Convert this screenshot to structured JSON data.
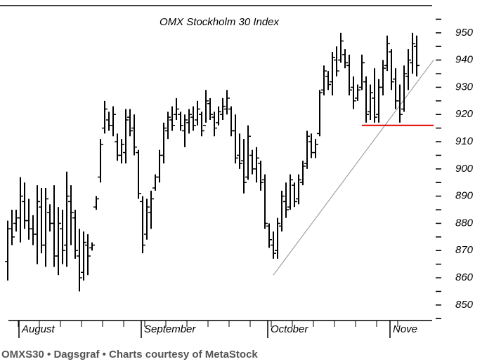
{
  "chart_data": {
    "type": "ohlc",
    "title": "OMX Stockholm 30 Index",
    "categories": [
      null,
      null,
      null,
      "August",
      null,
      null,
      null,
      null,
      null,
      null,
      null,
      null,
      null,
      null,
      null,
      null,
      null,
      null,
      null,
      null,
      null,
      null,
      null,
      null,
      null,
      null,
      null,
      null,
      null,
      null,
      null,
      null,
      "September",
      null,
      null,
      null,
      null,
      null,
      null,
      null,
      null,
      null,
      null,
      null,
      null,
      null,
      null,
      null,
      null,
      null,
      null,
      null,
      null,
      null,
      null,
      null,
      null,
      null,
      null,
      null,
      null,
      null,
      "October",
      null,
      null,
      null,
      null,
      null,
      null,
      null,
      null,
      null,
      null,
      null,
      null,
      null,
      null,
      null,
      null,
      null,
      null,
      null,
      null,
      null,
      null,
      null,
      null,
      null,
      null,
      null,
      null,
      "Nove",
      null,
      null,
      null,
      null,
      null,
      null
    ],
    "open": [
      866,
      878,
      880,
      882,
      888,
      881,
      878,
      876,
      886,
      872,
      884,
      880,
      868,
      878,
      872,
      888,
      882,
      868,
      862,
      872,
      871,
      886,
      897,
      915,
      918,
      916,
      910,
      905,
      906,
      919,
      915,
      906,
      888,
      876,
      884,
      893,
      897,
      905,
      914,
      918,
      920,
      920,
      914,
      917,
      919,
      918,
      920,
      916,
      924,
      919,
      917,
      920,
      922,
      922,
      914,
      905,
      903,
      897,
      905,
      900,
      902,
      896,
      879,
      872,
      870,
      879,
      888,
      886,
      894,
      889,
      895,
      902,
      910,
      906,
      913,
      929,
      934,
      932,
      940,
      940,
      942,
      938,
      930,
      926,
      930,
      932,
      921,
      926,
      920,
      930,
      938,
      943,
      933,
      925,
      922,
      934,
      939,
      945
    ],
    "high": [
      881,
      885,
      885,
      897,
      895,
      889,
      883,
      894,
      893,
      893,
      887,
      894,
      886,
      885,
      899,
      894,
      885,
      878,
      877,
      876,
      873,
      890,
      911,
      925,
      921,
      923,
      913,
      911,
      922,
      922,
      920,
      907,
      890,
      889,
      892,
      898,
      907,
      917,
      921,
      923,
      926,
      921,
      920,
      922,
      923,
      925,
      921,
      929,
      926,
      921,
      923,
      926,
      929,
      923,
      920,
      913,
      911,
      916,
      907,
      908,
      903,
      898,
      880,
      877,
      882,
      892,
      895,
      898,
      895,
      898,
      903,
      914,
      913,
      911,
      929,
      938,
      936,
      943,
      945,
      950,
      944,
      942,
      934,
      931,
      942,
      934,
      931,
      937,
      933,
      940,
      949,
      944,
      937,
      931,
      938,
      944,
      950,
      949
    ],
    "low": [
      859,
      872,
      877,
      873,
      878,
      874,
      872,
      865,
      869,
      864,
      877,
      864,
      861,
      865,
      864,
      872,
      867,
      855,
      859,
      861,
      870,
      885,
      895,
      913,
      914,
      912,
      903,
      902,
      902,
      912,
      905,
      889,
      869,
      874,
      878,
      892,
      895,
      902,
      911,
      914,
      918,
      914,
      908,
      913,
      914,
      916,
      912,
      917,
      918,
      912,
      916,
      918,
      920,
      912,
      902,
      900,
      891,
      896,
      898,
      895,
      892,
      878,
      871,
      867,
      867,
      877,
      882,
      885,
      886,
      887,
      894,
      900,
      904,
      904,
      912,
      927,
      929,
      927,
      934,
      939,
      937,
      927,
      922,
      925,
      929,
      917,
      918,
      917,
      917,
      927,
      936,
      929,
      922,
      917,
      921,
      929,
      935,
      934
    ],
    "close": [
      878,
      875,
      882,
      890,
      881,
      878,
      876,
      888,
      872,
      889,
      880,
      868,
      880,
      870,
      890,
      884,
      870,
      860,
      873,
      868,
      872,
      889,
      909,
      922,
      916,
      920,
      905,
      909,
      918,
      914,
      908,
      891,
      872,
      886,
      889,
      897,
      905,
      915,
      919,
      916,
      922,
      916,
      918,
      920,
      916,
      922,
      914,
      925,
      920,
      915,
      921,
      923,
      926,
      914,
      904,
      902,
      895,
      912,
      900,
      904,
      895,
      880,
      874,
      869,
      880,
      890,
      885,
      896,
      888,
      896,
      901,
      912,
      906,
      909,
      928,
      936,
      931,
      941,
      936,
      947,
      939,
      929,
      925,
      929,
      939,
      920,
      928,
      919,
      930,
      937,
      946,
      932,
      925,
      920,
      935,
      940,
      946,
      938
    ],
    "color": "#000000",
    "ylim": [
      844.3,
      960
    ],
    "yticks": [
      850,
      860,
      870,
      880,
      890,
      900,
      910,
      920,
      930,
      940,
      950
    ],
    "annotations": [
      {
        "from": [
          63,
          861
        ],
        "to": [
          101,
          940
        ],
        "color": "#909090"
      },
      {
        "from": [
          84,
          916
        ],
        "to": [
          101,
          916
        ],
        "color": "#e00000"
      }
    ]
  },
  "caption": "OMXS30 • Dagsgraf • Charts courtesy of MetaStock"
}
